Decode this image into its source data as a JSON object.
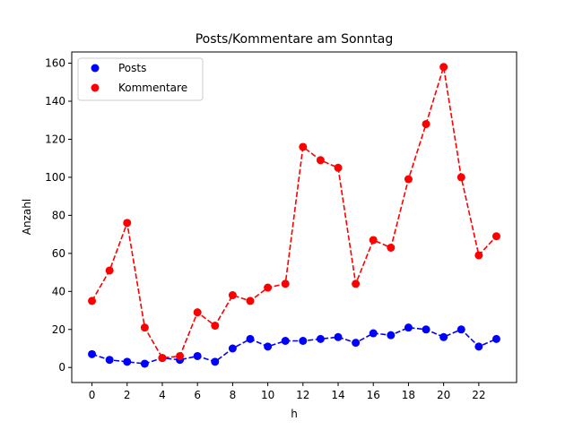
{
  "chart_data": {
    "type": "line",
    "title": "Posts/Kommentare am Sonntag",
    "xlabel": "h",
    "ylabel": "Anzahl",
    "x": [
      0,
      1,
      2,
      3,
      4,
      5,
      6,
      7,
      8,
      9,
      10,
      11,
      12,
      13,
      14,
      15,
      16,
      17,
      18,
      19,
      20,
      21,
      22,
      23
    ],
    "xticks": [
      0,
      2,
      4,
      6,
      8,
      10,
      12,
      14,
      16,
      18,
      20,
      22
    ],
    "yticks": [
      0,
      20,
      40,
      60,
      80,
      100,
      120,
      140,
      160
    ],
    "xlim": [
      -1.15,
      24.15
    ],
    "ylim": [
      -7.9,
      165.9
    ],
    "grid": false,
    "legend_position": "upper left",
    "series": [
      {
        "name": "Posts",
        "color": "#0000ff",
        "style": "dashed-line-with-circle-markers",
        "values": [
          7,
          4,
          3,
          2,
          5,
          4,
          6,
          3,
          10,
          15,
          11,
          14,
          14,
          15,
          16,
          13,
          18,
          17,
          21,
          20,
          16,
          20,
          11,
          15
        ]
      },
      {
        "name": "Kommentare",
        "color": "#ff0000",
        "style": "dashed-line-with-circle-markers",
        "values": [
          35,
          51,
          76,
          21,
          5,
          6,
          29,
          22,
          38,
          35,
          42,
          44,
          116,
          109,
          105,
          44,
          67,
          63,
          99,
          128,
          158,
          100,
          59,
          69
        ]
      }
    ]
  }
}
